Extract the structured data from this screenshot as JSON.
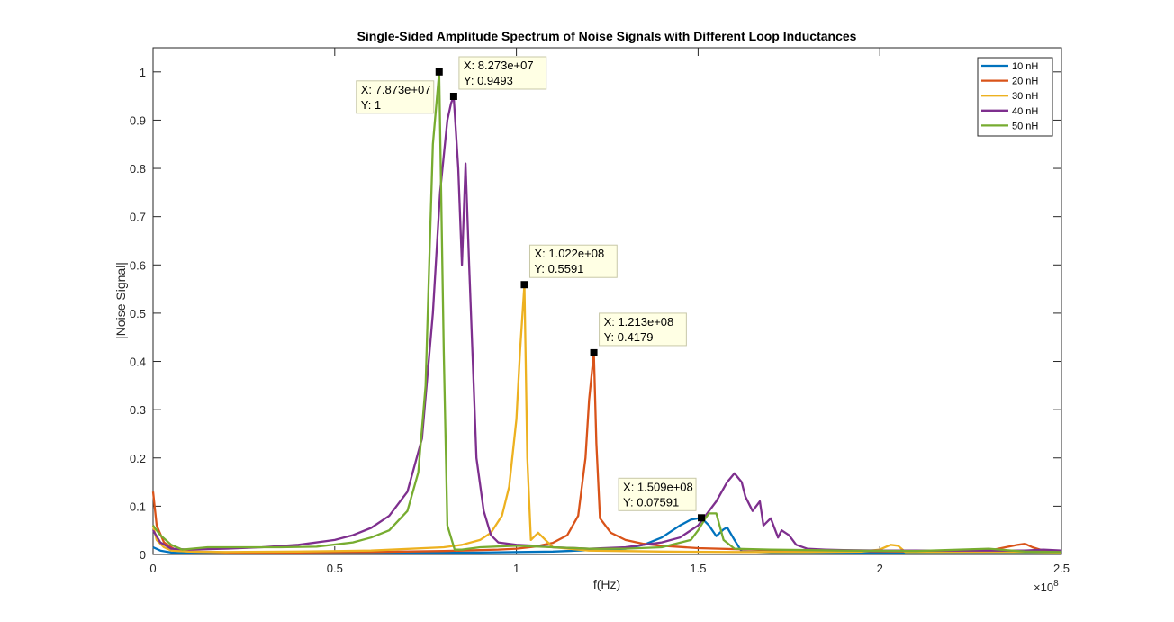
{
  "chart_data": {
    "type": "line",
    "title": "Single-Sided Amplitude Spectrum of Noise Signals with Different Loop Inductances",
    "xlabel": "f(Hz)",
    "ylabel": "|Noise Signal|",
    "x_exponent_label": "×10",
    "x_exponent_value": "8",
    "xlim": [
      0,
      2.5
    ],
    "ylim": [
      0,
      1.05
    ],
    "xticks": [
      0,
      0.5,
      1,
      1.5,
      2,
      2.5
    ],
    "xtick_labels": [
      "0",
      "0.5",
      "1",
      "1.5",
      "2",
      "2.5"
    ],
    "yticks": [
      0,
      0.1,
      0.2,
      0.3,
      0.4,
      0.5,
      0.6,
      0.7,
      0.8,
      0.9,
      1
    ],
    "ytick_labels": [
      "0",
      "0.1",
      "0.2",
      "0.3",
      "0.4",
      "0.5",
      "0.6",
      "0.7",
      "0.8",
      "0.9",
      "1"
    ],
    "grid": false,
    "legend_position": "top-right",
    "series": [
      {
        "name": "10 nH",
        "color": "#0072BD",
        "x": [
          0,
          0.02,
          0.05,
          0.1,
          0.3,
          0.6,
          0.9,
          1.1,
          1.3,
          1.35,
          1.4,
          1.45,
          1.48,
          1.509,
          1.53,
          1.55,
          1.57,
          1.58,
          1.6,
          1.62,
          1.7,
          1.9,
          2.1,
          2.3,
          2.4,
          2.5
        ],
        "y": [
          0.015,
          0.008,
          0.004,
          0.002,
          0.002,
          0.003,
          0.004,
          0.006,
          0.012,
          0.02,
          0.035,
          0.06,
          0.072,
          0.0759,
          0.06,
          0.038,
          0.052,
          0.056,
          0.03,
          0.006,
          0.004,
          0.003,
          0.002,
          0.002,
          0.002,
          0.002
        ]
      },
      {
        "name": "20 nH",
        "color": "#D95319",
        "x": [
          0,
          0.01,
          0.03,
          0.06,
          0.1,
          0.2,
          0.4,
          0.6,
          0.8,
          0.95,
          1.0,
          1.05,
          1.1,
          1.14,
          1.17,
          1.19,
          1.2,
          1.213,
          1.22,
          1.23,
          1.26,
          1.3,
          1.35,
          1.4,
          1.5,
          1.7,
          1.9,
          2.1,
          2.3,
          2.38,
          2.4,
          2.42,
          2.45,
          2.5
        ],
        "y": [
          0.13,
          0.06,
          0.025,
          0.01,
          0.006,
          0.004,
          0.004,
          0.005,
          0.007,
          0.01,
          0.012,
          0.016,
          0.024,
          0.04,
          0.08,
          0.2,
          0.32,
          0.4179,
          0.23,
          0.075,
          0.045,
          0.03,
          0.022,
          0.018,
          0.013,
          0.009,
          0.007,
          0.006,
          0.008,
          0.02,
          0.022,
          0.015,
          0.008,
          0.006
        ]
      },
      {
        "name": "30 nH",
        "color": "#EDB120",
        "x": [
          0,
          0.01,
          0.03,
          0.05,
          0.1,
          0.2,
          0.4,
          0.6,
          0.8,
          0.85,
          0.9,
          0.93,
          0.96,
          0.98,
          1.0,
          1.01,
          1.022,
          1.03,
          1.04,
          1.06,
          1.08,
          1.1,
          1.2,
          1.4,
          1.6,
          1.8,
          1.95,
          2.0,
          2.03,
          2.05,
          2.07,
          2.2,
          2.4,
          2.5
        ],
        "y": [
          0.06,
          0.03,
          0.015,
          0.008,
          0.006,
          0.005,
          0.006,
          0.008,
          0.015,
          0.02,
          0.03,
          0.045,
          0.08,
          0.14,
          0.28,
          0.42,
          0.5591,
          0.2,
          0.03,
          0.045,
          0.03,
          0.015,
          0.008,
          0.006,
          0.005,
          0.005,
          0.006,
          0.01,
          0.02,
          0.018,
          0.005,
          0.005,
          0.005,
          0.004
        ]
      },
      {
        "name": "40 nH",
        "color": "#7E2F8E",
        "x": [
          0,
          0.02,
          0.05,
          0.1,
          0.2,
          0.3,
          0.4,
          0.5,
          0.55,
          0.6,
          0.65,
          0.7,
          0.74,
          0.77,
          0.79,
          0.81,
          0.82,
          0.8273,
          0.84,
          0.85,
          0.86,
          0.87,
          0.89,
          0.91,
          0.93,
          0.95,
          1.0,
          1.05,
          1.1,
          1.2,
          1.3,
          1.4,
          1.45,
          1.5,
          1.55,
          1.58,
          1.6,
          1.62,
          1.63,
          1.65,
          1.67,
          1.68,
          1.7,
          1.72,
          1.73,
          1.75,
          1.77,
          1.8,
          1.85,
          1.9,
          2.0,
          2.2,
          2.4,
          2.45,
          2.5
        ],
        "y": [
          0.05,
          0.025,
          0.012,
          0.01,
          0.012,
          0.015,
          0.02,
          0.03,
          0.04,
          0.055,
          0.08,
          0.13,
          0.24,
          0.5,
          0.75,
          0.9,
          0.935,
          0.9493,
          0.8,
          0.6,
          0.81,
          0.6,
          0.2,
          0.09,
          0.04,
          0.025,
          0.02,
          0.018,
          0.015,
          0.012,
          0.015,
          0.025,
          0.035,
          0.06,
          0.11,
          0.15,
          0.168,
          0.15,
          0.12,
          0.09,
          0.11,
          0.06,
          0.075,
          0.035,
          0.05,
          0.04,
          0.02,
          0.012,
          0.01,
          0.009,
          0.008,
          0.008,
          0.008,
          0.01,
          0.008
        ]
      },
      {
        "name": "50 nH",
        "color": "#77AC30",
        "x": [
          0,
          0.02,
          0.05,
          0.08,
          0.15,
          0.25,
          0.35,
          0.45,
          0.55,
          0.6,
          0.65,
          0.7,
          0.73,
          0.75,
          0.76,
          0.77,
          0.7873,
          0.8,
          0.81,
          0.83,
          0.85,
          0.9,
          1.0,
          1.1,
          1.2,
          1.3,
          1.4,
          1.48,
          1.5,
          1.52,
          1.53,
          1.55,
          1.57,
          1.6,
          1.7,
          1.9,
          2.1,
          2.3,
          2.33,
          2.4,
          2.5
        ],
        "y": [
          0.06,
          0.04,
          0.02,
          0.01,
          0.015,
          0.015,
          0.015,
          0.016,
          0.025,
          0.035,
          0.05,
          0.09,
          0.17,
          0.35,
          0.6,
          0.85,
          1.0,
          0.42,
          0.06,
          0.01,
          0.01,
          0.015,
          0.018,
          0.015,
          0.012,
          0.012,
          0.015,
          0.03,
          0.05,
          0.075,
          0.085,
          0.085,
          0.03,
          0.012,
          0.01,
          0.008,
          0.007,
          0.012,
          0.01,
          0.006,
          0.005
        ]
      }
    ],
    "annotations": [
      {
        "x": 0.7873,
        "y": 1.0,
        "line1": "X: 7.873e+07",
        "line2": "Y: 1",
        "side": "left"
      },
      {
        "x": 0.8273,
        "y": 0.9493,
        "line1": "X: 8.273e+07",
        "line2": "Y: 0.9493",
        "side": "right"
      },
      {
        "x": 1.022,
        "y": 0.5591,
        "line1": "X: 1.022e+08",
        "line2": "Y: 0.5591",
        "side": "right"
      },
      {
        "x": 1.213,
        "y": 0.4179,
        "line1": "X: 1.213e+08",
        "line2": "Y: 0.4179",
        "side": "right"
      },
      {
        "x": 1.509,
        "y": 0.07591,
        "line1": "X: 1.509e+08",
        "line2": "Y: 0.07591",
        "side": "left"
      }
    ]
  }
}
